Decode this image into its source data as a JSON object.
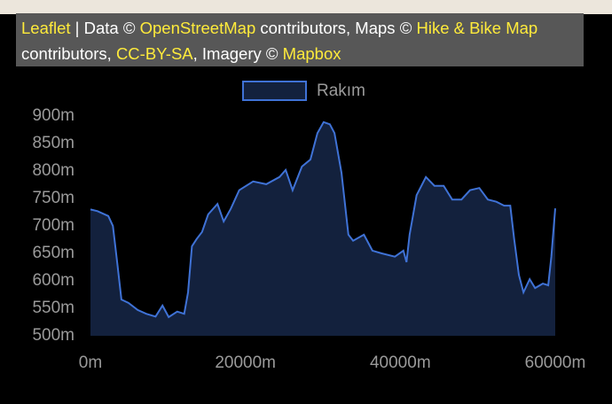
{
  "attribution": [
    {
      "text": "Leaflet",
      "link": true
    },
    {
      "text": " | Data © ",
      "link": false
    },
    {
      "text": "OpenStreetMap",
      "link": true
    },
    {
      "text": " contributors, Maps © ",
      "link": false
    },
    {
      "text": "Hike & Bike Map",
      "link": true
    },
    {
      "text": " contributors, ",
      "link": false
    },
    {
      "text": "CC-BY-SA",
      "link": true
    },
    {
      "text": ", Imagery © ",
      "link": false
    },
    {
      "text": "Mapbox",
      "link": true
    }
  ],
  "chart_data": {
    "type": "area",
    "series": [
      {
        "name": "Rakım",
        "color": "#3f72d6",
        "fill": "#13213d",
        "x": [
          0,
          900,
          2300,
          2900,
          3500,
          4000,
          4900,
          6100,
          7200,
          8400,
          9300,
          10100,
          11200,
          12100,
          12600,
          13100,
          13700,
          14400,
          15200,
          16400,
          17200,
          18100,
          19200,
          21000,
          22700,
          24400,
          25200,
          26100,
          27300,
          28400,
          29300,
          30100,
          30900,
          31500,
          32400,
          33300,
          33900,
          35300,
          36400,
          37600,
          39300,
          40400,
          40800,
          41200,
          42100,
          43300,
          44400,
          45600,
          46700,
          47900,
          49000,
          50200,
          51300,
          52400,
          53400,
          54200,
          54700,
          55300,
          55900,
          56700,
          57400,
          58400,
          59100,
          59500,
          60000
        ],
        "values": [
          730,
          727,
          718,
          700,
          627,
          566,
          560,
          547,
          540,
          535,
          555,
          534,
          544,
          540,
          579,
          663,
          676,
          689,
          721,
          740,
          708,
          731,
          765,
          781,
          776,
          789,
          802,
          765,
          808,
          821,
          869,
          889,
          885,
          869,
          797,
          684,
          673,
          684,
          655,
          650,
          644,
          655,
          634,
          684,
          756,
          789,
          773,
          773,
          748,
          748,
          765,
          769,
          748,
          744,
          737,
          737,
          676,
          611,
          579,
          603,
          587,
          595,
          592,
          644,
          732
        ]
      }
    ],
    "xlim": [
      0,
      60000
    ],
    "xticks": [
      {
        "value": 0,
        "label": "0m"
      },
      {
        "value": 20000,
        "label": "20000m"
      },
      {
        "value": 40000,
        "label": "40000m"
      },
      {
        "value": 60000,
        "label": "60000m"
      }
    ],
    "ylim": [
      500,
      900
    ],
    "yticks": [
      {
        "value": 500,
        "label": "500m"
      },
      {
        "value": 550,
        "label": "550m"
      },
      {
        "value": 600,
        "label": "600m"
      },
      {
        "value": 650,
        "label": "650m"
      },
      {
        "value": 700,
        "label": "700m"
      },
      {
        "value": 750,
        "label": "750m"
      },
      {
        "value": 800,
        "label": "800m"
      },
      {
        "value": 850,
        "label": "850m"
      },
      {
        "value": 900,
        "label": "900m"
      }
    ],
    "legend": "top"
  }
}
